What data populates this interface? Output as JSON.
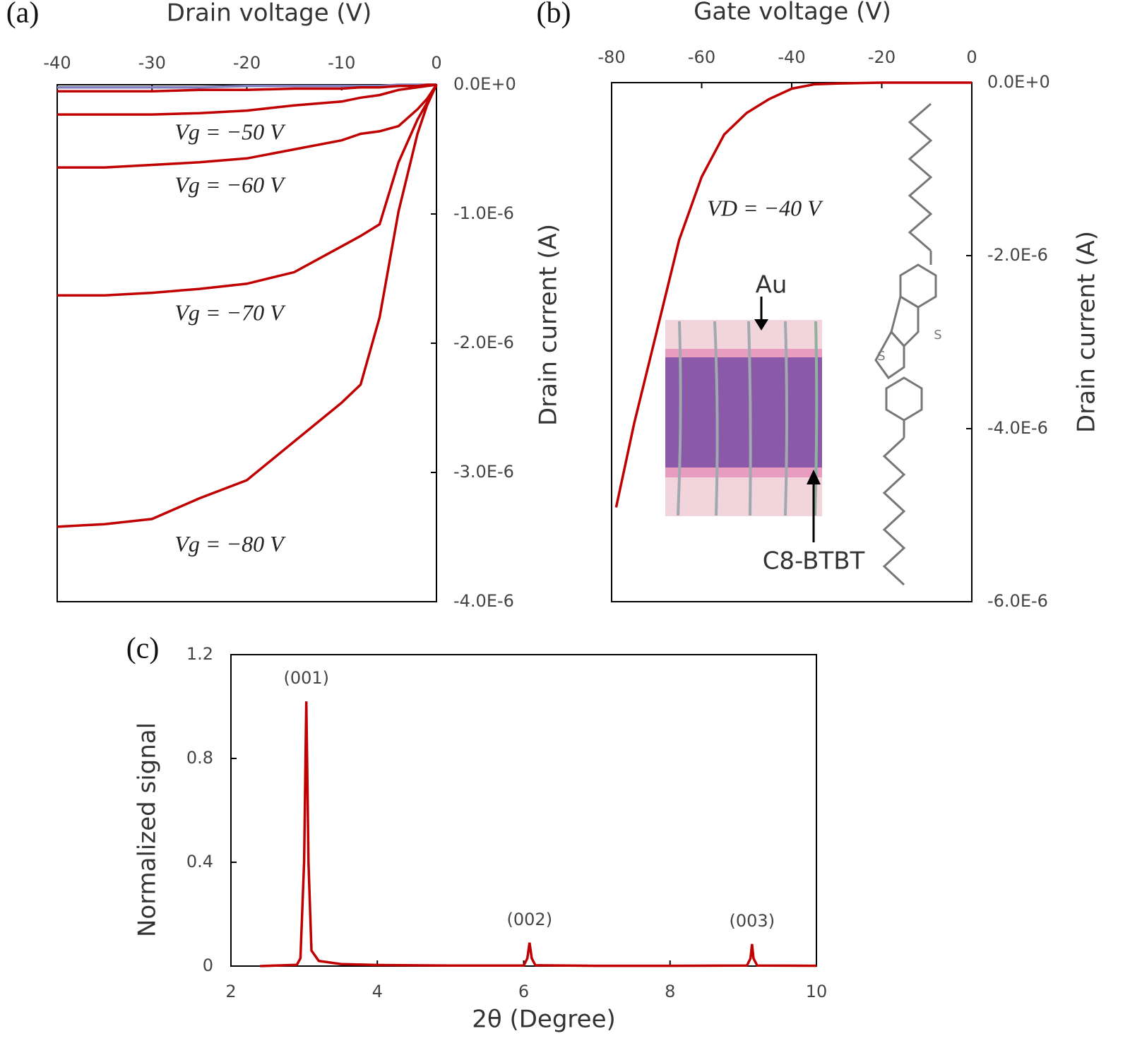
{
  "chart_data": [
    {
      "type": "line",
      "panel": "(a)",
      "x_label": "Drain voltage (V)",
      "y_label": "Drain current (A)",
      "x": [
        -40,
        -35,
        -30,
        -25,
        -20,
        -15,
        -10,
        -8,
        -6,
        -4,
        -2,
        -1,
        0
      ],
      "series": [
        {
          "color": "#8080c0",
          "values": [
            -2e-08,
            -2e-08,
            -2e-08,
            -2e-08,
            -1e-08,
            -1e-08,
            -1e-08,
            -1e-08,
            -1e-08,
            0,
            0,
            0,
            0
          ]
        },
        {
          "color": "#c00000",
          "values": [
            -5e-08,
            -5e-08,
            -5e-08,
            -4e-08,
            -4e-08,
            -3e-08,
            -3e-08,
            -2e-08,
            -2e-08,
            -1e-08,
            -1e-08,
            0,
            0
          ]
        },
        {
          "name": "Vg = −50 V",
          "color": "#c00000",
          "values": [
            -2.3e-07,
            -2.3e-07,
            -2.3e-07,
            -2.2e-07,
            -2e-07,
            -1.6e-07,
            -1.3e-07,
            -1e-07,
            -8e-08,
            -4e-08,
            -2e-08,
            -1e-08,
            0
          ]
        },
        {
          "name": "Vg = −60 V",
          "color": "#c00000",
          "values": [
            -6.4e-07,
            -6.4e-07,
            -6.2e-07,
            -6e-07,
            -5.7e-07,
            -5e-07,
            -4.3e-07,
            -3.8e-07,
            -3.6e-07,
            -3.2e-07,
            -1.9e-07,
            -1.1e-07,
            0
          ]
        },
        {
          "name": "Vg = −70 V",
          "color": "#c00000",
          "values": [
            -1.63e-06,
            -1.63e-06,
            -1.61e-06,
            -1.58e-06,
            -1.54e-06,
            -1.45e-06,
            -1.25e-06,
            -1.17e-06,
            -1.08e-06,
            -6e-07,
            -2.7e-07,
            -1.4e-07,
            0
          ]
        },
        {
          "name": "Vg = −80 V",
          "color": "#c00000",
          "values": [
            -3.42e-06,
            -3.4e-06,
            -3.36e-06,
            -3.2e-06,
            -3.06e-06,
            -2.76e-06,
            -2.46e-06,
            -2.32e-06,
            -1.8e-06,
            -9.8e-07,
            -3.8e-07,
            -1.6e-07,
            0
          ]
        }
      ],
      "xlim": [
        -40,
        0
      ],
      "xticks": [
        -40,
        -30,
        -20,
        -10,
        0
      ],
      "ylim": [
        -4e-06,
        0
      ],
      "yticks": [
        {
          "value": 0,
          "label": "0.0E+0"
        },
        {
          "value": -1e-06,
          "label": "-1.0E-6"
        },
        {
          "value": -2e-06,
          "label": "-2.0E-6"
        },
        {
          "value": -3e-06,
          "label": "-3.0E-6"
        },
        {
          "value": -4e-06,
          "label": "-4.0E-6"
        }
      ]
    },
    {
      "type": "line",
      "panel": "(b)",
      "x_label": "Gate voltage (V)",
      "y_label": "Drain current (A)",
      "x": [
        -79,
        -75,
        -70,
        -65,
        -60,
        -55,
        -50,
        -45,
        -40,
        -35,
        -30,
        -20,
        0
      ],
      "series": [
        {
          "name": "VD = −40 V",
          "color": "#c00000",
          "values": [
            -4.91e-06,
            -3.94e-06,
            -2.88e-06,
            -1.82e-06,
            -1.09e-06,
            -6e-07,
            -3.5e-07,
            -1.9e-07,
            -7e-08,
            -2e-08,
            -1e-08,
            0,
            0
          ]
        }
      ],
      "xlim": [
        -80,
        0
      ],
      "xticks": [
        -80,
        -60,
        -40,
        -20,
        0
      ],
      "ylim": [
        -6e-06,
        0
      ],
      "yticks": [
        {
          "value": 0,
          "label": "0.0E+0"
        },
        {
          "value": -2e-06,
          "label": "-2.0E-6"
        },
        {
          "value": -4e-06,
          "label": "-4.0E-6"
        },
        {
          "value": -6e-06,
          "label": "-6.0E-6"
        }
      ],
      "inset_labels": {
        "electrode": "Au",
        "semiconductor": "C8-BTBT",
        "atoms": [
          "S",
          "S"
        ]
      }
    },
    {
      "type": "line",
      "panel": "(c)",
      "x_label": "2θ (Degree)",
      "y_label": "Normalized signal",
      "x": [
        2.4,
        2.9,
        2.95,
        3.0,
        3.03,
        3.06,
        3.1,
        3.2,
        3.5,
        4,
        5,
        6.0,
        6.05,
        6.08,
        6.11,
        6.16,
        7,
        8,
        9.05,
        9.1,
        9.12,
        9.14,
        9.19,
        10
      ],
      "values": [
        0,
        0.005,
        0.03,
        0.4,
        1.02,
        0.4,
        0.06,
        0.02,
        0.008,
        0.004,
        0.002,
        0.002,
        0.03,
        0.09,
        0.03,
        0.003,
        0.001,
        0.001,
        0.002,
        0.03,
        0.085,
        0.03,
        0.002,
        0.001
      ],
      "color": "#c00000",
      "xlim": [
        2,
        10
      ],
      "xticks": [
        2,
        4,
        6,
        8,
        10
      ],
      "ylim": [
        0,
        1.2
      ],
      "yticks": [
        0,
        0.4,
        0.8,
        1.2
      ],
      "peak_labels": [
        {
          "text": "(001)",
          "x": 3.03
        },
        {
          "text": "(002)",
          "x": 6.08
        },
        {
          "text": "(003)",
          "x": 9.12
        }
      ]
    }
  ]
}
